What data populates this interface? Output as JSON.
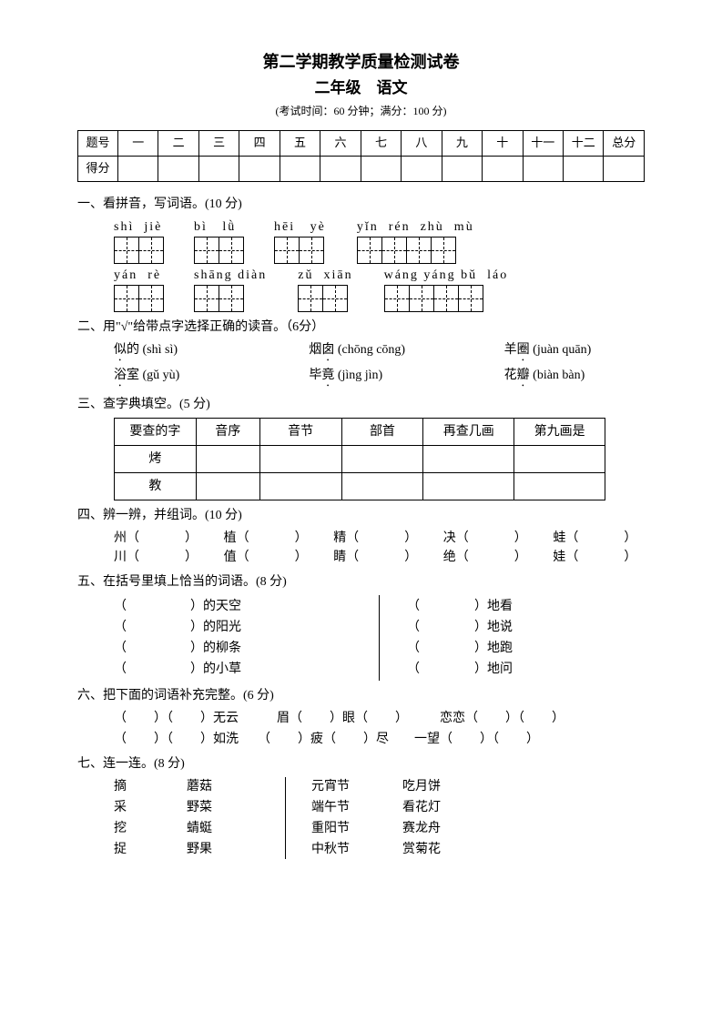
{
  "title_main": "第二学期教学质量检测试卷",
  "title_sub": "二年级　语文",
  "title_info": "(考试时间：60 分钟；满分：100 分)",
  "score_table": {
    "row1_label": "题号",
    "row1_cells": [
      "一",
      "二",
      "三",
      "四",
      "五",
      "六",
      "七",
      "八",
      "九",
      "十",
      "十一",
      "十二",
      "总分"
    ],
    "row2_label": "得分"
  },
  "sec1": {
    "title": "一、看拼音，写词语。(10 分)",
    "rows": [
      [
        {
          "pinyin": "shì  jiè",
          "boxes": 2
        },
        {
          "pinyin": "bì   lǜ",
          "boxes": 2
        },
        {
          "pinyin": "hēi   yè",
          "boxes": 2
        },
        {
          "pinyin": "yǐn  rén  zhù  mù",
          "boxes": 4
        }
      ],
      [
        {
          "pinyin": "yán  rè",
          "boxes": 2
        },
        {
          "pinyin": "shāng diàn",
          "boxes": 2
        },
        {
          "pinyin": "zǔ  xiān",
          "boxes": 2
        },
        {
          "pinyin": "wáng yáng bǔ  láo",
          "boxes": 4
        }
      ]
    ]
  },
  "sec2": {
    "title": "二、用\"√\"给带点字选择正确的读音。（6分）",
    "rows": [
      [
        {
          "char": "似",
          "rest": "的",
          "py": "(shì  sì)"
        },
        {
          "char": "囱",
          "pre": "烟",
          "py": "(chōng  cōng)"
        },
        {
          "char": "圈",
          "pre": "羊",
          "py": "(juàn  quān)"
        }
      ],
      [
        {
          "char": "浴",
          "rest": "室",
          "py": "(gǔ  yù)"
        },
        {
          "char": "竟",
          "pre": "毕",
          "py": "(jìng  jìn)"
        },
        {
          "char": "瓣",
          "pre": "花",
          "py": "(biàn  bàn)"
        }
      ]
    ]
  },
  "sec3": {
    "title": "三、查字典填空。(5 分)",
    "headers": [
      "要查的字",
      "音序",
      "音节",
      "部首",
      "再查几画",
      "第九画是"
    ],
    "chars": [
      "烤",
      "教"
    ]
  },
  "sec4": {
    "title": "四、辨一辨，并组词。(10 分)",
    "rows": [
      [
        "州",
        "植",
        "精",
        "决",
        "蛙"
      ],
      [
        "川",
        "值",
        "睛",
        "绝",
        "娃"
      ]
    ]
  },
  "sec5": {
    "title": "五、在括号里填上恰当的词语。(8 分)",
    "left": [
      "的天空",
      "的阳光",
      "的柳条",
      "的小草"
    ],
    "right": [
      "地看",
      "地说",
      "地跑",
      "地问"
    ]
  },
  "sec6": {
    "title": "六、把下面的词语补充完整。(6 分)",
    "line1_parts": [
      "（",
      "）（",
      "）无云",
      "眉（",
      "）眼（",
      "）",
      "恋恋（",
      "）（",
      "）"
    ],
    "line2_parts": [
      "（",
      "）（",
      "）如洗",
      "（",
      "）疲（",
      "）尽",
      "一望（",
      "）（",
      "）"
    ]
  },
  "sec7": {
    "title": "七、连一连。(8 分)",
    "col1": [
      "摘",
      "采",
      "挖",
      "捉"
    ],
    "col2": [
      "蘑菇",
      "野菜",
      "蜻蜓",
      "野果"
    ],
    "col3": [
      "元宵节",
      "端午节",
      "重阳节",
      "中秋节"
    ],
    "col4": [
      "吃月饼",
      "看花灯",
      "赛龙舟",
      "赏菊花"
    ]
  }
}
